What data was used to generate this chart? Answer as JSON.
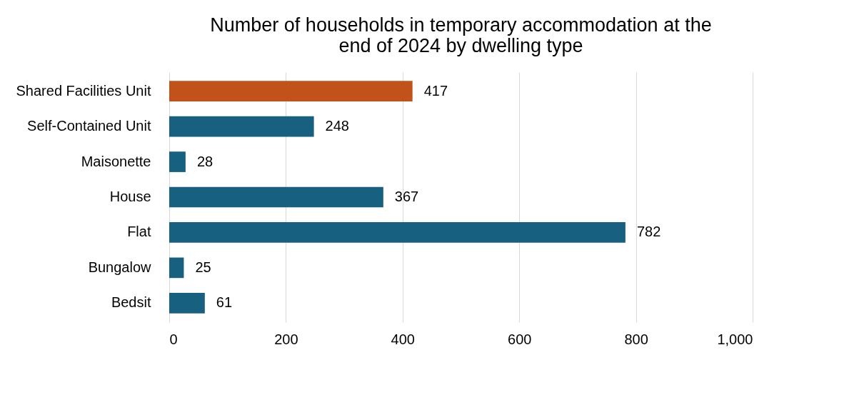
{
  "chart_data": {
    "type": "bar",
    "orientation": "horizontal",
    "title": "Number of households in temporary accommodation at the end of 2024 by dwelling type",
    "categories": [
      "Shared Facilities Unit",
      "Self-Contained Unit",
      "Maisonette",
      "House",
      "Flat",
      "Bungalow",
      "Bedsit"
    ],
    "values": [
      417,
      248,
      28,
      367,
      782,
      25,
      61
    ],
    "colors": [
      "#c0521a",
      "#17607f",
      "#17607f",
      "#17607f",
      "#17607f",
      "#17607f",
      "#17607f"
    ],
    "xlim": [
      0,
      1000
    ],
    "xticks": [
      0,
      200,
      400,
      600,
      800,
      {
        "value": 1000,
        "label": "1,000"
      }
    ],
    "grid": "x",
    "data_labels": true
  }
}
